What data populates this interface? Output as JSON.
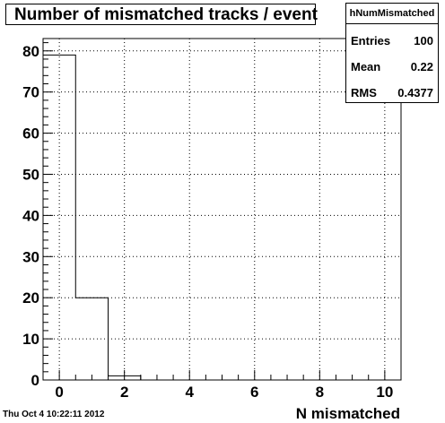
{
  "chart_data": {
    "type": "histogram",
    "title": "Number of mismatched tracks / event",
    "xlabel": "N mismatched",
    "ylabel": "",
    "xlim": [
      -0.5,
      10.5
    ],
    "ylim": [
      0,
      83
    ],
    "x_ticks": [
      0,
      2,
      4,
      6,
      8,
      10
    ],
    "y_ticks": [
      0,
      10,
      20,
      30,
      40,
      50,
      60,
      70,
      80
    ],
    "bin_edges": [
      -0.5,
      0.5,
      1.5,
      2.5
    ],
    "values": [
      79,
      20,
      1
    ],
    "grid": true,
    "stats": {
      "name": "hNumMismatched",
      "rows": [
        {
          "label": "Entries",
          "value": "100"
        },
        {
          "label": "Mean",
          "value": "0.22"
        },
        {
          "label": "RMS",
          "value": "0.4377"
        }
      ]
    }
  },
  "footer": {
    "timestamp": "Thu Oct  4 10:22:11 2012"
  }
}
